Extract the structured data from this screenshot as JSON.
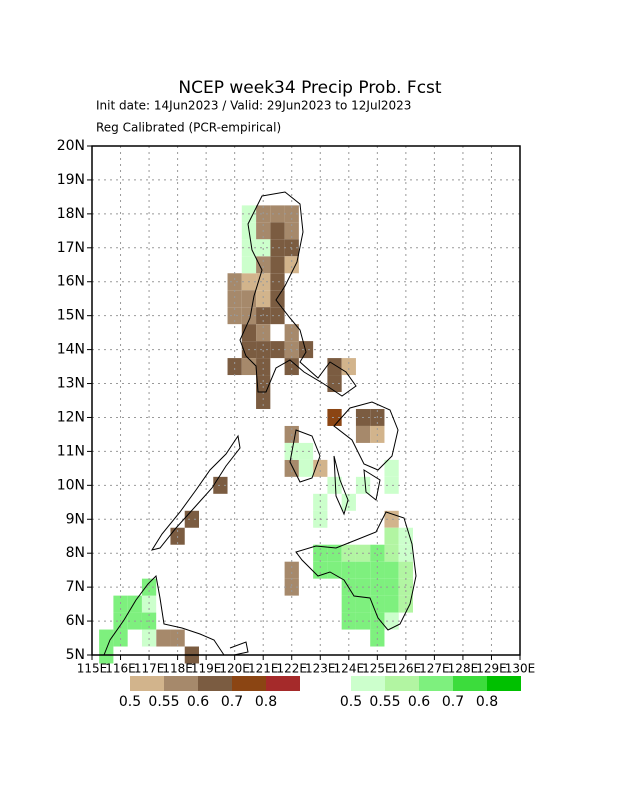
{
  "chart_data": {
    "type": "map",
    "title": "NCEP week34 Precip Prob. Fcst",
    "subtitle": "Init date: 14Jun2023 / Valid: 29Jun2023 to 12Jul2023",
    "note": "Reg Calibrated (PCR-empirical)",
    "xlim": [
      115,
      130
    ],
    "ylim": [
      5,
      20
    ],
    "xticks": [
      {
        "value": 115,
        "label": "115E"
      },
      {
        "value": 116,
        "label": "116E"
      },
      {
        "value": 117,
        "label": "117E"
      },
      {
        "value": 118,
        "label": "118E"
      },
      {
        "value": 119,
        "label": "119E"
      },
      {
        "value": 120,
        "label": "120E"
      },
      {
        "value": 121,
        "label": "121E"
      },
      {
        "value": 122,
        "label": "122E"
      },
      {
        "value": 123,
        "label": "123E"
      },
      {
        "value": 124,
        "label": "124E"
      },
      {
        "value": 125,
        "label": "125E"
      },
      {
        "value": 126,
        "label": "126E"
      },
      {
        "value": 127,
        "label": "127E"
      },
      {
        "value": 128,
        "label": "128E"
      },
      {
        "value": 129,
        "label": "129E"
      },
      {
        "value": 130,
        "label": "130E"
      }
    ],
    "yticks": [
      {
        "value": 5,
        "label": "5N"
      },
      {
        "value": 6,
        "label": "6N"
      },
      {
        "value": 7,
        "label": "7N"
      },
      {
        "value": 8,
        "label": "8N"
      },
      {
        "value": 9,
        "label": "9N"
      },
      {
        "value": 10,
        "label": "10N"
      },
      {
        "value": 11,
        "label": "11N"
      },
      {
        "value": 12,
        "label": "12N"
      },
      {
        "value": 13,
        "label": "13N"
      },
      {
        "value": 14,
        "label": "14N"
      },
      {
        "value": 15,
        "label": "15N"
      },
      {
        "value": 16,
        "label": "16N"
      },
      {
        "value": 17,
        "label": "17N"
      },
      {
        "value": 18,
        "label": "18N"
      },
      {
        "value": 19,
        "label": "19N"
      },
      {
        "value": 20,
        "label": "20N"
      }
    ],
    "grid": true,
    "dry_scale": {
      "levels": [
        0.5,
        0.55,
        0.6,
        0.7,
        0.8
      ],
      "colors": [
        "#d2b48c",
        "#a6896b",
        "#7b5c41",
        "#8b4513",
        "#a52a2a"
      ]
    },
    "wet_scale": {
      "levels": [
        0.5,
        0.55,
        0.6,
        0.7,
        0.8
      ],
      "colors": [
        "#ccffcc",
        "#b2f5a2",
        "#7ef07e",
        "#3cdc3c",
        "#00c000"
      ]
    },
    "dry_cells": [
      [
        121,
        18,
        0.55
      ],
      [
        121.5,
        18,
        0.55
      ],
      [
        122,
        18,
        0.55
      ],
      [
        121,
        17.5,
        0.55
      ],
      [
        121.5,
        17.5,
        0.6
      ],
      [
        122,
        17.5,
        0.55
      ],
      [
        121.5,
        17,
        0.6
      ],
      [
        122,
        17,
        0.6
      ],
      [
        121,
        16.5,
        0.55
      ],
      [
        121.5,
        16.5,
        0.6
      ],
      [
        122,
        16.5,
        0.5
      ],
      [
        120,
        16,
        0.55
      ],
      [
        120.5,
        16,
        0.5
      ],
      [
        121,
        16,
        0.5
      ],
      [
        121.5,
        16,
        0.6
      ],
      [
        120,
        15.5,
        0.55
      ],
      [
        120.5,
        15.5,
        0.55
      ],
      [
        121,
        15.5,
        0.5
      ],
      [
        121.5,
        15.5,
        0.6
      ],
      [
        120,
        15,
        0.55
      ],
      [
        120.5,
        15,
        0.55
      ],
      [
        121,
        15,
        0.6
      ],
      [
        121.5,
        15,
        0.6
      ],
      [
        120.5,
        14.5,
        0.6
      ],
      [
        121,
        14.5,
        0.55
      ],
      [
        122,
        14.5,
        0.55
      ],
      [
        120.5,
        14,
        0.6
      ],
      [
        121,
        14,
        0.6
      ],
      [
        121.5,
        14,
        0.6
      ],
      [
        122,
        14,
        0.55
      ],
      [
        122.5,
        14,
        0.6
      ],
      [
        120,
        13.5,
        0.6
      ],
      [
        120.5,
        13.5,
        0.55
      ],
      [
        121,
        13.5,
        0.6
      ],
      [
        122,
        13.5,
        0.6
      ],
      [
        121,
        13,
        0.6
      ],
      [
        123.5,
        13.5,
        0.6
      ],
      [
        124,
        13.5,
        0.5
      ],
      [
        123.5,
        13,
        0.6
      ],
      [
        121,
        12.5,
        0.6
      ],
      [
        123.5,
        12,
        0.7
      ],
      [
        124.5,
        12,
        0.6
      ],
      [
        125,
        12,
        0.6
      ],
      [
        124.5,
        11.5,
        0.55
      ],
      [
        125,
        11.5,
        0.5
      ],
      [
        122,
        11.5,
        0.55
      ],
      [
        122,
        10.5,
        0.55
      ],
      [
        123,
        10.5,
        0.5
      ],
      [
        119.5,
        10,
        0.6
      ],
      [
        118.5,
        9,
        0.6
      ],
      [
        118,
        8.5,
        0.6
      ],
      [
        125.5,
        9,
        0.5
      ],
      [
        122,
        7.5,
        0.55
      ],
      [
        122,
        7,
        0.55
      ],
      [
        117.5,
        5.5,
        0.55
      ],
      [
        118,
        5.5,
        0.55
      ],
      [
        118.5,
        5,
        0.6
      ]
    ],
    "wet_cells": [
      [
        120.5,
        18,
        0.5
      ],
      [
        120.5,
        17.5,
        0.5
      ],
      [
        120.5,
        17,
        0.5
      ],
      [
        121,
        17,
        0.5
      ],
      [
        120.5,
        16.5,
        0.5
      ],
      [
        122,
        11,
        0.5
      ],
      [
        122.5,
        11,
        0.5
      ],
      [
        122.5,
        10.5,
        0.5
      ],
      [
        123,
        9,
        0.5
      ],
      [
        123,
        9.5,
        0.5
      ],
      [
        124,
        9.5,
        0.5
      ],
      [
        123.5,
        10,
        0.5
      ],
      [
        124.5,
        10,
        0.5
      ],
      [
        125.5,
        10.5,
        0.5
      ],
      [
        125.5,
        10,
        0.5
      ],
      [
        123,
        8,
        0.6
      ],
      [
        123.5,
        8,
        0.6
      ],
      [
        124,
        8,
        0.55
      ],
      [
        124.5,
        8,
        0.55
      ],
      [
        125,
        8,
        0.6
      ],
      [
        125.5,
        8,
        0.55
      ],
      [
        126,
        8,
        0.5
      ],
      [
        125.5,
        8.5,
        0.55
      ],
      [
        126,
        8.5,
        0.5
      ],
      [
        123,
        7.5,
        0.6
      ],
      [
        123.5,
        7.5,
        0.6
      ],
      [
        124,
        7.5,
        0.6
      ],
      [
        124.5,
        7.5,
        0.6
      ],
      [
        125,
        7.5,
        0.6
      ],
      [
        125.5,
        7.5,
        0.6
      ],
      [
        126,
        7.5,
        0.55
      ],
      [
        124,
        7,
        0.6
      ],
      [
        124.5,
        7,
        0.6
      ],
      [
        125,
        7,
        0.6
      ],
      [
        125.5,
        7,
        0.6
      ],
      [
        126,
        7,
        0.55
      ],
      [
        124,
        6.5,
        0.6
      ],
      [
        124.5,
        6.5,
        0.6
      ],
      [
        125,
        6.5,
        0.6
      ],
      [
        125.5,
        6.5,
        0.6
      ],
      [
        126,
        6.5,
        0.55
      ],
      [
        124,
        6,
        0.6
      ],
      [
        124.5,
        6,
        0.6
      ],
      [
        125,
        6,
        0.6
      ],
      [
        125.5,
        6,
        0.5
      ],
      [
        125,
        5.5,
        0.6
      ],
      [
        116,
        6.5,
        0.6
      ],
      [
        116.5,
        6.5,
        0.6
      ],
      [
        117,
        6.5,
        0.5
      ],
      [
        117,
        7,
        0.6
      ],
      [
        116,
        6,
        0.6
      ],
      [
        116.5,
        6,
        0.6
      ],
      [
        117,
        6,
        0.6
      ],
      [
        115.5,
        5.5,
        0.6
      ],
      [
        116,
        5.5,
        0.6
      ],
      [
        117,
        5.5,
        0.5
      ],
      [
        115.5,
        5,
        0.6
      ]
    ]
  }
}
